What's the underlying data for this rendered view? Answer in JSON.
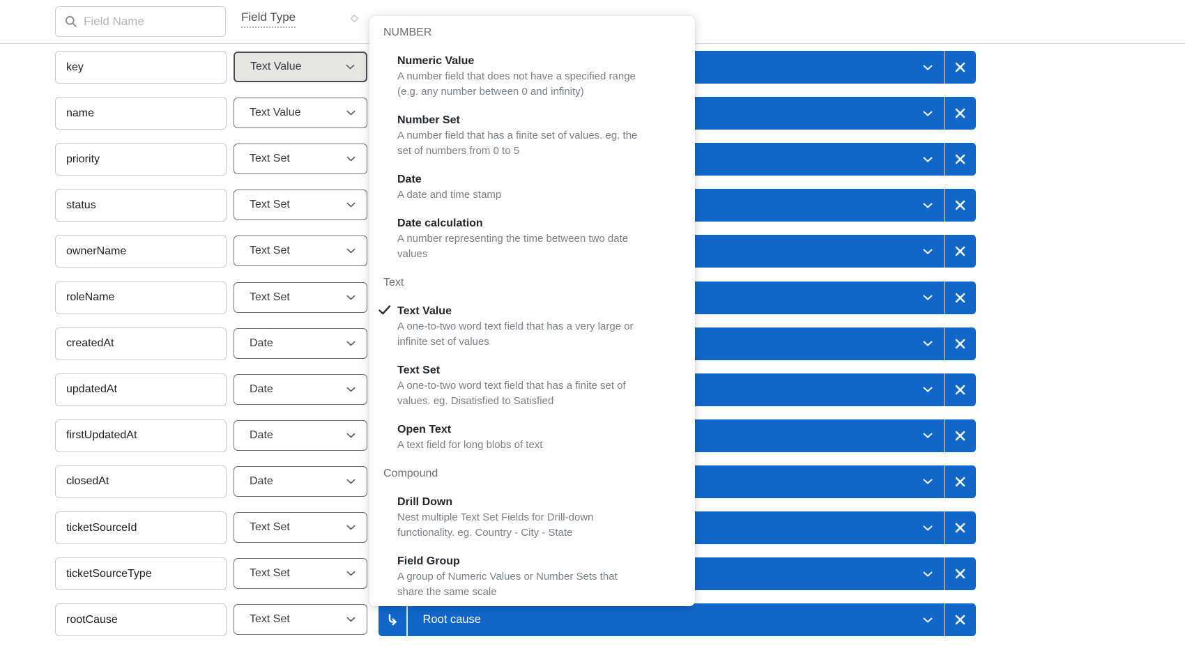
{
  "header": {
    "search_placeholder": "Field Name",
    "field_type_label": "Field Type"
  },
  "colors": {
    "accent_blue": "#1167C9",
    "active_dropdown_bg": "#e6e6e5"
  },
  "rows": [
    {
      "name": "key",
      "type": "Text Value",
      "active": true,
      "mapped_label": ""
    },
    {
      "name": "name",
      "type": "Text Value",
      "active": false,
      "mapped_label": ""
    },
    {
      "name": "priority",
      "type": "Text Set",
      "active": false,
      "mapped_label": ""
    },
    {
      "name": "status",
      "type": "Text Set",
      "active": false,
      "mapped_label": ""
    },
    {
      "name": "ownerName",
      "type": "Text Set",
      "active": false,
      "mapped_label": ""
    },
    {
      "name": "roleName",
      "type": "Text Set",
      "active": false,
      "mapped_label": ""
    },
    {
      "name": "createdAt",
      "type": "Date",
      "active": false,
      "mapped_label": ""
    },
    {
      "name": "updatedAt",
      "type": "Date",
      "active": false,
      "mapped_label": ""
    },
    {
      "name": "firstUpdatedAt",
      "type": "Date",
      "active": false,
      "mapped_label": ""
    },
    {
      "name": "closedAt",
      "type": "Date",
      "active": false,
      "mapped_label": ""
    },
    {
      "name": "ticketSourceId",
      "type": "Text Set",
      "active": false,
      "mapped_label": ""
    },
    {
      "name": "ticketSourceType",
      "type": "Text Set",
      "active": false,
      "mapped_label": ""
    },
    {
      "name": "rootCause",
      "type": "Text Set",
      "active": false,
      "mapped_label": "Root cause",
      "nested": true
    }
  ],
  "type_menu": {
    "sections": [
      {
        "header": "NUMBER",
        "items": [
          {
            "title": "Numeric Value",
            "checked": false,
            "desc": "A number field that does not have a specified range\n(e.g. any number between 0 and infinity)"
          },
          {
            "title": "Number Set",
            "checked": false,
            "desc": "A number field that has a finite set of values. eg. the\nset of numbers from 0 to 5"
          },
          {
            "title": "Date",
            "checked": false,
            "desc": "A date and time stamp"
          },
          {
            "title": "Date calculation",
            "checked": false,
            "desc": "A number representing the time between two date\nvalues"
          }
        ]
      },
      {
        "header": "Text",
        "items": [
          {
            "title": "Text Value",
            "checked": true,
            "desc": "A one-to-two word text field that has a very large or\ninfinite set of values"
          },
          {
            "title": "Text Set",
            "checked": false,
            "desc": "A one-to-two word text field that has a finite set of\nvalues. eg. Disatisfied to Satisfied"
          },
          {
            "title": "Open Text",
            "checked": false,
            "desc": "A text field for long blobs of text"
          }
        ]
      },
      {
        "header": "Compound",
        "items": [
          {
            "title": "Drill Down",
            "checked": false,
            "desc": "Nest multiple Text Set Fields for Drill-down\nfunctionality. eg. Country - City - State"
          },
          {
            "title": "Field Group",
            "checked": false,
            "desc": "A group of Numeric Values or Number Sets that\nshare the same scale"
          }
        ]
      }
    ]
  }
}
